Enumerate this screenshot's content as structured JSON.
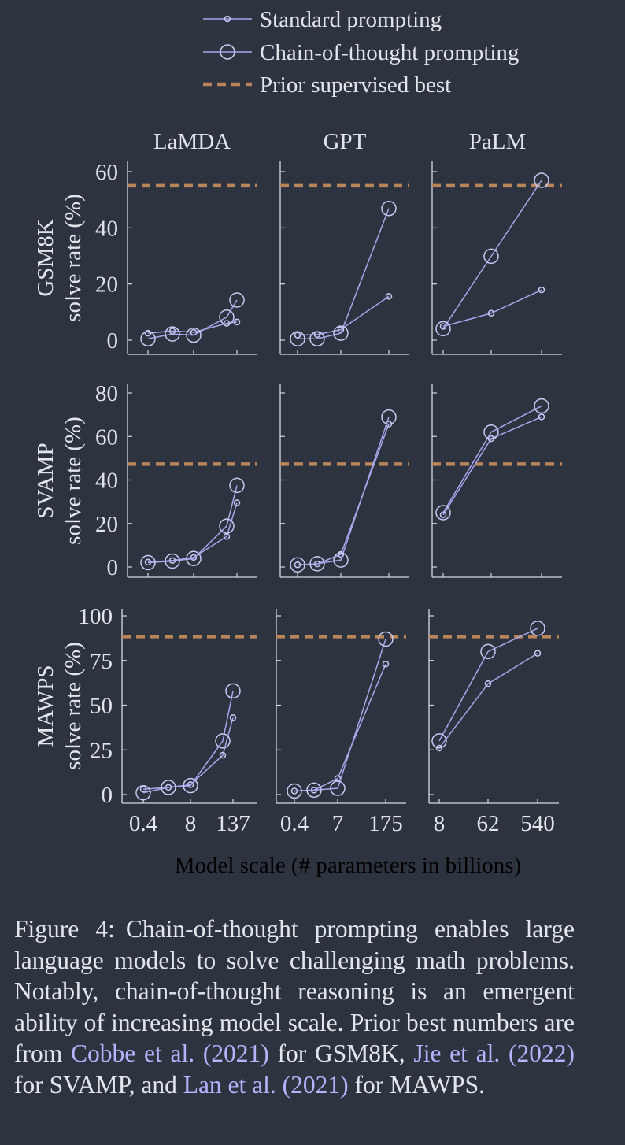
{
  "colors": {
    "background": "#2e3340",
    "text": "#e3e5ec",
    "axis": "#d7d9e0",
    "series_line": "#a7a7ec",
    "marker": "#c9c9f5",
    "prior_best": "#b8855a",
    "citation_link": "#b4b4ff"
  },
  "chart_data": {
    "type": "line",
    "legend": {
      "placement": "top-center",
      "items": [
        {
          "label": "Standard prompting",
          "style": "small-marker"
        },
        {
          "label": "Chain-of-thought prompting",
          "style": "large-marker"
        },
        {
          "label": "Prior supervised best",
          "style": "dashed"
        }
      ]
    },
    "column_titles": [
      "LaMDA",
      "GPT",
      "PaLM"
    ],
    "row_titles": [
      {
        "dataset": "GSM8K",
        "metric": "solve rate (%)"
      },
      {
        "dataset": "SVAMP",
        "metric": "solve rate (%)"
      },
      {
        "dataset": "MAWPS",
        "metric": "solve rate (%)"
      }
    ],
    "xlabel": "Model scale (# parameters in billions)",
    "x_tick_labels": [
      [
        "0.4",
        "8",
        "137"
      ],
      [
        "0.4",
        "7",
        "175"
      ],
      [
        "8",
        "62",
        "540"
      ]
    ],
    "x_ticks_shown_at": [
      [
        0.4,
        8,
        137
      ],
      [
        0.4,
        7,
        175
      ],
      [
        8,
        62,
        540
      ]
    ],
    "x_models": {
      "LaMDA": [
        0.4,
        2,
        8,
        68,
        137
      ],
      "GPT": [
        0.4,
        1.3,
        7,
        175
      ],
      "PaLM": [
        8,
        62,
        540
      ]
    },
    "x_scale": "log",
    "grid": false,
    "panels": [
      {
        "row": 0,
        "col": 0,
        "ylim": [
          0,
          65
        ],
        "yticks": [
          0,
          20,
          40,
          60
        ],
        "prior_best": 55,
        "standard": [
          2.5,
          3.3,
          2.8,
          6.0,
          6.5
        ],
        "cot": [
          0.5,
          2.2,
          1.8,
          8.2,
          14.3
        ]
      },
      {
        "row": 0,
        "col": 1,
        "ylim": [
          0,
          65
        ],
        "yticks": [
          0,
          20,
          40,
          60
        ],
        "prior_best": 55,
        "standard": [
          1.8,
          2.0,
          3.8,
          15.6
        ],
        "cot": [
          0.5,
          0.5,
          2.5,
          46.9
        ]
      },
      {
        "row": 0,
        "col": 2,
        "ylim": [
          0,
          65
        ],
        "yticks": [
          0,
          20,
          40,
          60
        ],
        "prior_best": 55,
        "standard": [
          4.9,
          9.6,
          17.9
        ],
        "cot": [
          4.1,
          29.9,
          56.9
        ]
      },
      {
        "row": 1,
        "col": 0,
        "ylim": [
          0,
          85
        ],
        "yticks": [
          0,
          20,
          40,
          60,
          80
        ],
        "prior_best": 47.3,
        "standard": [
          2.2,
          3.0,
          4.4,
          14.0,
          29.5
        ],
        "cot": [
          2.0,
          2.7,
          3.9,
          18.8,
          37.5
        ]
      },
      {
        "row": 1,
        "col": 1,
        "ylim": [
          0,
          85
        ],
        "yticks": [
          0,
          20,
          40,
          60,
          80
        ],
        "prior_best": 47.3,
        "standard": [
          1.0,
          1.4,
          5.8,
          65.7
        ],
        "cot": [
          1.0,
          1.5,
          3.2,
          68.9
        ]
      },
      {
        "row": 1,
        "col": 2,
        "ylim": [
          0,
          85
        ],
        "yticks": [
          0,
          20,
          40,
          60,
          80
        ],
        "prior_best": 47.3,
        "standard": [
          24.0,
          59.0,
          69.0
        ],
        "cot": [
          25.0,
          62.0,
          74.0
        ]
      },
      {
        "row": 2,
        "col": 0,
        "ylim": [
          0,
          105
        ],
        "yticks": [
          0,
          25,
          50,
          75,
          100
        ],
        "prior_best": 88.4,
        "standard": [
          3.0,
          4.0,
          5.5,
          22.0,
          43.0
        ],
        "cot": [
          1.0,
          4.0,
          5.0,
          30.0,
          58.0
        ]
      },
      {
        "row": 2,
        "col": 1,
        "ylim": [
          0,
          105
        ],
        "yticks": [
          0,
          25,
          50,
          75,
          100
        ],
        "prior_best": 88.4,
        "standard": [
          2.0,
          2.5,
          9.0,
          73.0
        ],
        "cot": [
          2.0,
          2.5,
          3.5,
          87.0
        ]
      },
      {
        "row": 2,
        "col": 2,
        "ylim": [
          0,
          105
        ],
        "yticks": [
          0,
          25,
          50,
          75,
          100
        ],
        "prior_best": 88.4,
        "standard": [
          26.0,
          62.0,
          79.0
        ],
        "cot": [
          30.0,
          80.0,
          93.0
        ]
      }
    ]
  },
  "caption": {
    "label": "Figure 4:",
    "text_1": "Chain-of-thought prompting enables large language models to solve challenging math problems. Notably, chain-of-thought reasoning is an emergent ability of increasing model scale. Prior best numbers are from ",
    "cite_1": "Cobbe et al. (2021)",
    "text_2": " for GSM8K, ",
    "cite_2": "Jie et al. (2022)",
    "text_3": " for SVAMP, and ",
    "cite_3": "Lan et al. (2021)",
    "text_4": " for MAWPS."
  }
}
